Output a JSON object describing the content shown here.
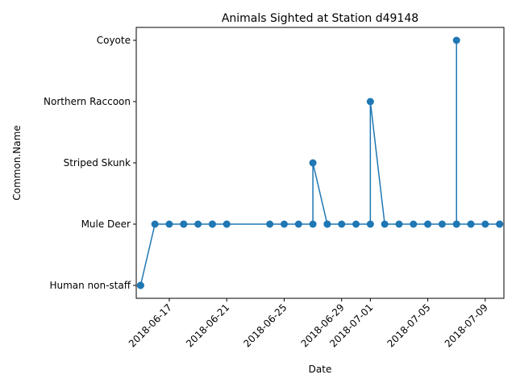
{
  "chart_data": {
    "type": "line",
    "title": "Animals Sighted at Station d49148",
    "xlabel": "Date",
    "ylabel": "Common.Name",
    "y_categories": [
      "Human non-staff",
      "Mule Deer",
      "Striped Skunk",
      "Northern Raccoon",
      "Coyote"
    ],
    "x_ticks": [
      "2018-06-17",
      "2018-06-21",
      "2018-06-25",
      "2018-06-29",
      "2018-07-01",
      "2018-07-05",
      "2018-07-09"
    ],
    "xlim": [
      "2018-06-14",
      "2018-07-10"
    ],
    "grid": false,
    "series": [
      {
        "color": "#1f77b4",
        "points": [
          {
            "x": "2018-06-15",
            "y": "Human non-staff"
          },
          {
            "x": "2018-06-15",
            "y": "Human non-staff"
          },
          {
            "x": "2018-06-16",
            "y": "Mule Deer"
          },
          {
            "x": "2018-06-17",
            "y": "Mule Deer"
          },
          {
            "x": "2018-06-18",
            "y": "Mule Deer"
          },
          {
            "x": "2018-06-18",
            "y": "Mule Deer"
          },
          {
            "x": "2018-06-19",
            "y": "Mule Deer"
          },
          {
            "x": "2018-06-20",
            "y": "Mule Deer"
          },
          {
            "x": "2018-06-20",
            "y": "Mule Deer"
          },
          {
            "x": "2018-06-21",
            "y": "Mule Deer"
          },
          {
            "x": "2018-06-21",
            "y": "Mule Deer"
          },
          {
            "x": "2018-06-24",
            "y": "Mule Deer"
          },
          {
            "x": "2018-06-25",
            "y": "Mule Deer"
          },
          {
            "x": "2018-06-26",
            "y": "Mule Deer"
          },
          {
            "x": "2018-06-27",
            "y": "Mule Deer"
          },
          {
            "x": "2018-06-27",
            "y": "Striped Skunk"
          },
          {
            "x": "2018-06-28",
            "y": "Mule Deer"
          },
          {
            "x": "2018-06-28",
            "y": "Mule Deer"
          },
          {
            "x": "2018-06-29",
            "y": "Mule Deer"
          },
          {
            "x": "2018-06-30",
            "y": "Mule Deer"
          },
          {
            "x": "2018-07-01",
            "y": "Mule Deer"
          },
          {
            "x": "2018-07-01",
            "y": "Northern Raccoon"
          },
          {
            "x": "2018-07-02",
            "y": "Mule Deer"
          },
          {
            "x": "2018-07-03",
            "y": "Mule Deer"
          },
          {
            "x": "2018-07-04",
            "y": "Mule Deer"
          },
          {
            "x": "2018-07-05",
            "y": "Mule Deer"
          },
          {
            "x": "2018-07-05",
            "y": "Mule Deer"
          },
          {
            "x": "2018-07-06",
            "y": "Mule Deer"
          },
          {
            "x": "2018-07-07",
            "y": "Mule Deer"
          },
          {
            "x": "2018-07-07",
            "y": "Coyote"
          },
          {
            "x": "2018-07-07",
            "y": "Mule Deer"
          },
          {
            "x": "2018-07-08",
            "y": "Mule Deer"
          },
          {
            "x": "2018-07-08",
            "y": "Mule Deer"
          },
          {
            "x": "2018-07-09",
            "y": "Mule Deer"
          },
          {
            "x": "2018-07-10",
            "y": "Mule Deer"
          },
          {
            "x": "2018-07-10",
            "y": "Mule Deer"
          }
        ]
      }
    ]
  }
}
